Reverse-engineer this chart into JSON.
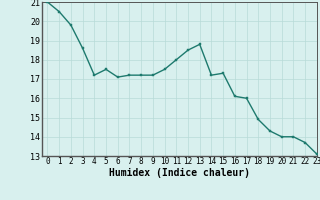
{
  "x": [
    0,
    1,
    2,
    3,
    4,
    5,
    6,
    7,
    8,
    9,
    10,
    11,
    12,
    13,
    14,
    15,
    16,
    17,
    18,
    19,
    20,
    21,
    22,
    23
  ],
  "y": [
    21,
    20.5,
    19.8,
    18.6,
    17.2,
    17.5,
    17.1,
    17.2,
    17.2,
    17.2,
    17.5,
    18.0,
    18.5,
    18.8,
    17.2,
    17.3,
    16.1,
    16.0,
    14.9,
    14.3,
    14.0,
    14.0,
    13.7,
    13.1
  ],
  "line_color": "#1e7a6e",
  "marker_color": "#1e7a6e",
  "bg_color": "#d8f0ee",
  "grid_color": "#b8dbd8",
  "xlabel": "Humidex (Indice chaleur)",
  "ylim": [
    13,
    21
  ],
  "xlim": [
    -0.5,
    23
  ],
  "yticks": [
    13,
    14,
    15,
    16,
    17,
    18,
    19,
    20,
    21
  ],
  "xticks": [
    0,
    1,
    2,
    3,
    4,
    5,
    6,
    7,
    8,
    9,
    10,
    11,
    12,
    13,
    14,
    15,
    16,
    17,
    18,
    19,
    20,
    21,
    22,
    23
  ],
  "xtick_labels": [
    "0",
    "1",
    "2",
    "3",
    "4",
    "5",
    "6",
    "7",
    "8",
    "9",
    "10",
    "11",
    "12",
    "13",
    "14",
    "15",
    "16",
    "17",
    "18",
    "19",
    "20",
    "21",
    "22",
    "23"
  ],
  "font_color": "#000000",
  "linewidth": 1.0,
  "markersize": 2.0,
  "tick_fontsize": 5.5,
  "xlabel_fontsize": 7.0,
  "ytick_fontsize": 6.0
}
